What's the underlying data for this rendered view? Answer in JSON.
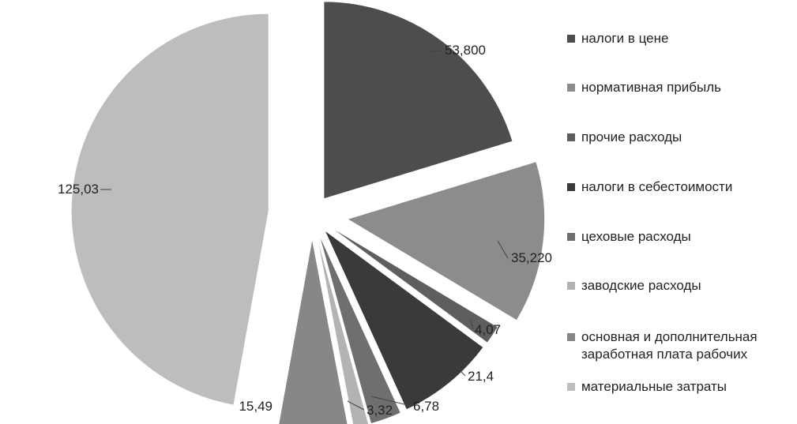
{
  "chart_data": {
    "type": "pie",
    "exploded": true,
    "legend_position": "right",
    "slices": [
      {
        "legend": "налоги в цене",
        "label": "53,800",
        "value": 53.8,
        "color": "#4d4d4d"
      },
      {
        "legend": "нормативная прибыль",
        "label": "35,220",
        "value": 35.22,
        "color": "#8c8c8c"
      },
      {
        "legend": "прочие расходы",
        "label": "4,07",
        "value": 4.07,
        "color": "#5e5e5e"
      },
      {
        "legend": "налоги в себестоимости",
        "label": "21,4",
        "value": 21.4,
        "color": "#3a3a3a"
      },
      {
        "legend": "цеховые расходы",
        "label": "6,78",
        "value": 6.78,
        "color": "#6f6f6f"
      },
      {
        "legend": "заводские расходы",
        "label": "3,32",
        "value": 3.32,
        "color": "#b3b3b3"
      },
      {
        "legend": "основная и дополнительная\nзаработная плата рабочих",
        "label": "15,49",
        "value": 15.49,
        "color": "#878787"
      },
      {
        "legend": "материальные затраты",
        "label": "125,03",
        "value": 125.03,
        "color": "#bdbdbd"
      }
    ]
  }
}
